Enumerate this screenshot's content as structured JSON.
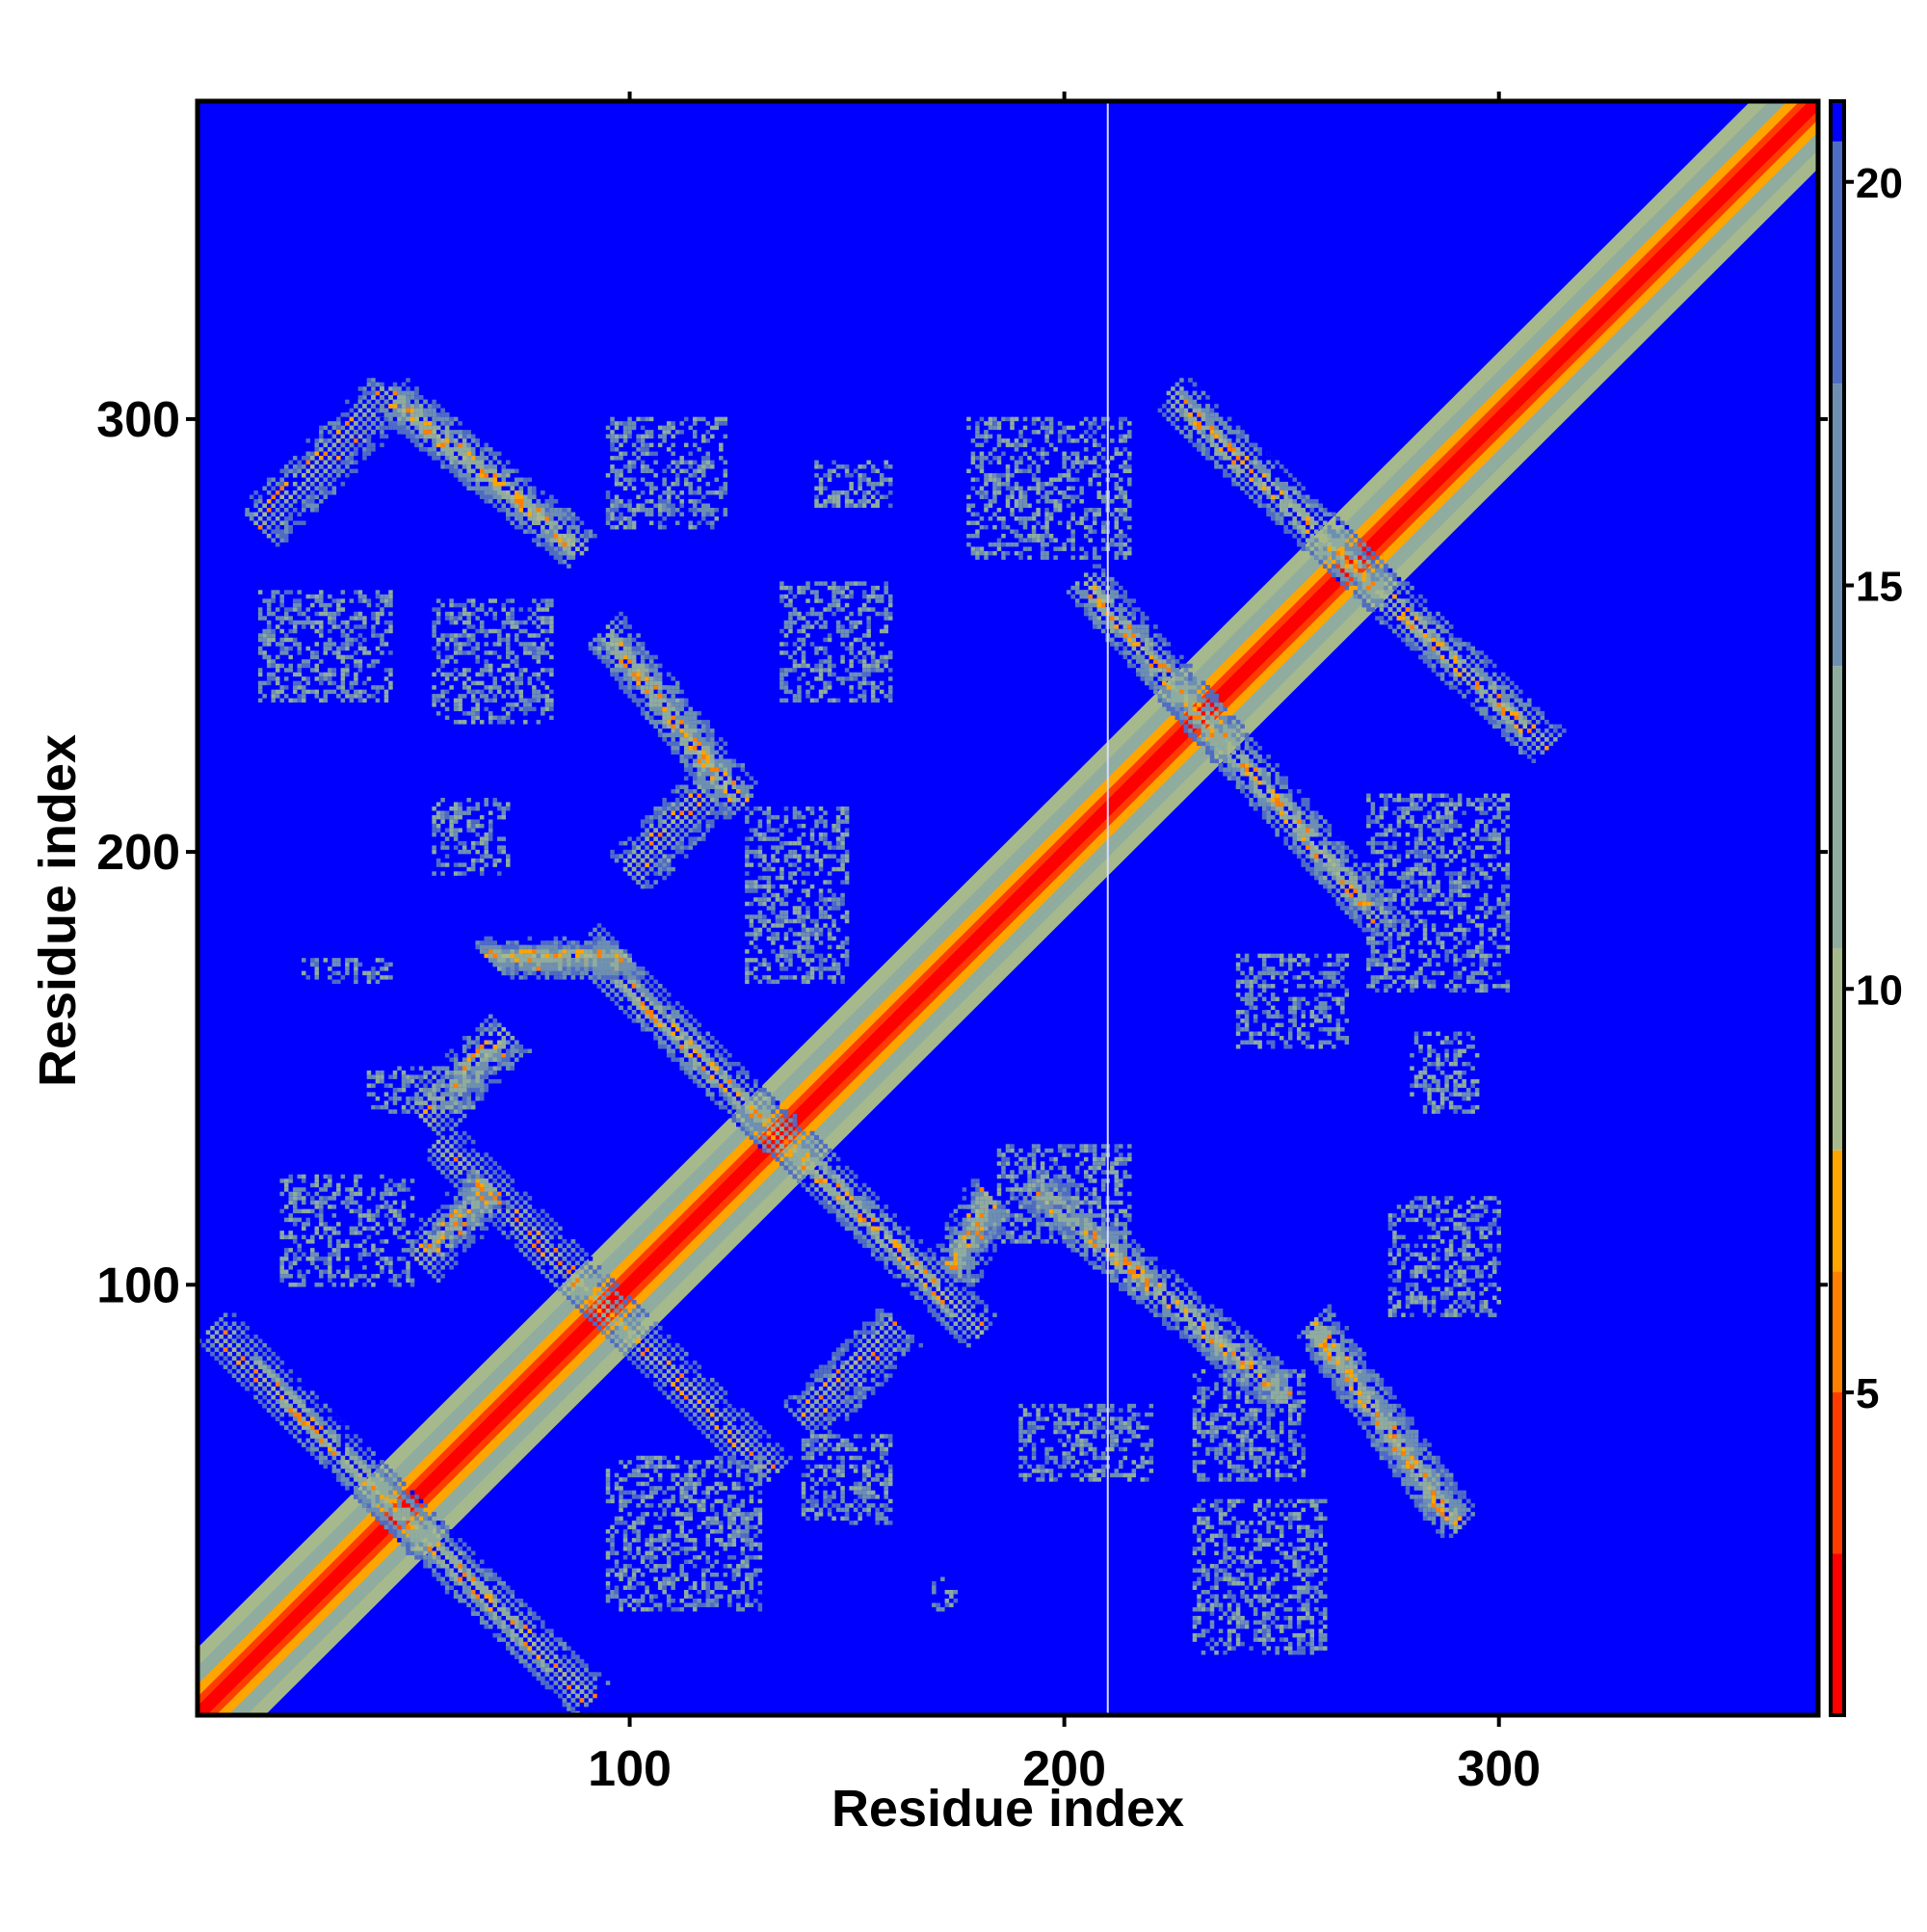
{
  "chart_data": {
    "type": "heatmap",
    "title": "",
    "xlabel": "Residue index",
    "ylabel": "Residue index",
    "xlim": [
      1,
      373
    ],
    "ylim": [
      1,
      373
    ],
    "x_ticks": [
      100,
      200,
      300
    ],
    "y_ticks": [
      100,
      200,
      300
    ],
    "colorbar": {
      "ticks": [
        5,
        10,
        15,
        20
      ],
      "range": [
        1,
        21
      ],
      "bands": [
        {
          "from": 1,
          "to": 3,
          "color": "#ff0000"
        },
        {
          "from": 3,
          "to": 5,
          "color": "#ff3c00"
        },
        {
          "from": 5,
          "to": 6.5,
          "color": "#ff7f00"
        },
        {
          "from": 6.5,
          "to": 8,
          "color": "#ffa500"
        },
        {
          "from": 8,
          "to": 10.5,
          "color": "#a6b98d"
        },
        {
          "from": 10.5,
          "to": 14,
          "color": "#8fac9f"
        },
        {
          "from": 14,
          "to": 17.5,
          "color": "#6d8fb2"
        },
        {
          "from": 17.5,
          "to": 20.5,
          "color": "#4f6cc4"
        },
        {
          "from": 20.5,
          "to": 21,
          "color": "#0000ff"
        }
      ]
    },
    "background_value": 21,
    "background_color": "#0000ff",
    "diagonal": {
      "from": 1,
      "to": 373
    },
    "gap_column_x": 210,
    "contact_bands": [
      {
        "from": [
          5,
          89
        ],
        "to": [
          90,
          5
        ]
      },
      {
        "from": [
          57,
          132
        ],
        "to": [
          132,
          57
        ]
      },
      {
        "from": [
          90,
          178
        ],
        "to": [
          180,
          90
        ]
      },
      {
        "from": [
          193,
          122
        ],
        "to": [
          250,
          75
        ]
      },
      {
        "from": [
          258,
          90
        ],
        "to": [
          290,
          45
        ]
      },
      {
        "from": [
          205,
          262
        ],
        "to": [
          272,
          185
        ]
      },
      {
        "from": [
          225,
          305
        ],
        "to": [
          310,
          225
        ]
      },
      {
        "from": [
          15,
          275
        ],
        "to": [
          45,
          305
        ]
      },
      {
        "from": [
          45,
          305
        ],
        "to": [
          88,
          270
        ]
      },
      {
        "from": [
          95,
          250
        ],
        "to": [
          125,
          212
        ]
      },
      {
        "from": [
          100,
          195
        ],
        "to": [
          118,
          213
        ]
      },
      {
        "from": [
          68,
          175
        ],
        "to": [
          100,
          175
        ]
      },
      {
        "from": [
          53,
          138
        ],
        "to": [
          72,
          158
        ]
      },
      {
        "from": [
          52,
          105
        ],
        "to": [
          68,
          122
        ]
      },
      {
        "from": [
          140,
          68
        ],
        "to": [
          162,
          90
        ]
      },
      {
        "from": [
          175,
          103
        ],
        "to": [
          183,
          120
        ]
      }
    ],
    "sparse_patches": [
      {
        "x": [
          95,
          122
        ],
        "y": [
          275,
          300
        ]
      },
      {
        "x": [
          143,
          160
        ],
        "y": [
          280,
          290
        ]
      },
      {
        "x": [
          178,
          215
        ],
        "y": [
          268,
          300
        ]
      },
      {
        "x": [
          15,
          45
        ],
        "y": [
          235,
          260
        ]
      },
      {
        "x": [
          55,
          82
        ],
        "y": [
          230,
          258
        ]
      },
      {
        "x": [
          135,
          160
        ],
        "y": [
          235,
          262
        ]
      },
      {
        "x": [
          55,
          72
        ],
        "y": [
          195,
          212
        ]
      },
      {
        "x": [
          127,
          150
        ],
        "y": [
          170,
          210
        ]
      },
      {
        "x": [
          270,
          302
        ],
        "y": [
          168,
          213
        ]
      },
      {
        "x": [
          240,
          265
        ],
        "y": [
          155,
          176
        ]
      },
      {
        "x": [
          280,
          295
        ],
        "y": [
          140,
          158
        ]
      },
      {
        "x": [
          40,
          65
        ],
        "y": [
          140,
          150
        ]
      },
      {
        "x": [
          20,
          50
        ],
        "y": [
          100,
          125
        ]
      },
      {
        "x": [
          185,
          215
        ],
        "y": [
          110,
          132
        ]
      },
      {
        "x": [
          275,
          300
        ],
        "y": [
          93,
          120
        ]
      },
      {
        "x": [
          190,
          220
        ],
        "y": [
          55,
          72
        ]
      },
      {
        "x": [
          230,
          255
        ],
        "y": [
          55,
          80
        ]
      },
      {
        "x": [
          95,
          130
        ],
        "y": [
          25,
          60
        ]
      },
      {
        "x": [
          140,
          160
        ],
        "y": [
          45,
          65
        ]
      },
      {
        "x": [
          230,
          260
        ],
        "y": [
          15,
          50
        ]
      },
      {
        "x": [
          25,
          45
        ],
        "y": [
          170,
          175
        ]
      },
      {
        "x": [
          170,
          175
        ],
        "y": [
          25,
          32
        ]
      }
    ]
  }
}
